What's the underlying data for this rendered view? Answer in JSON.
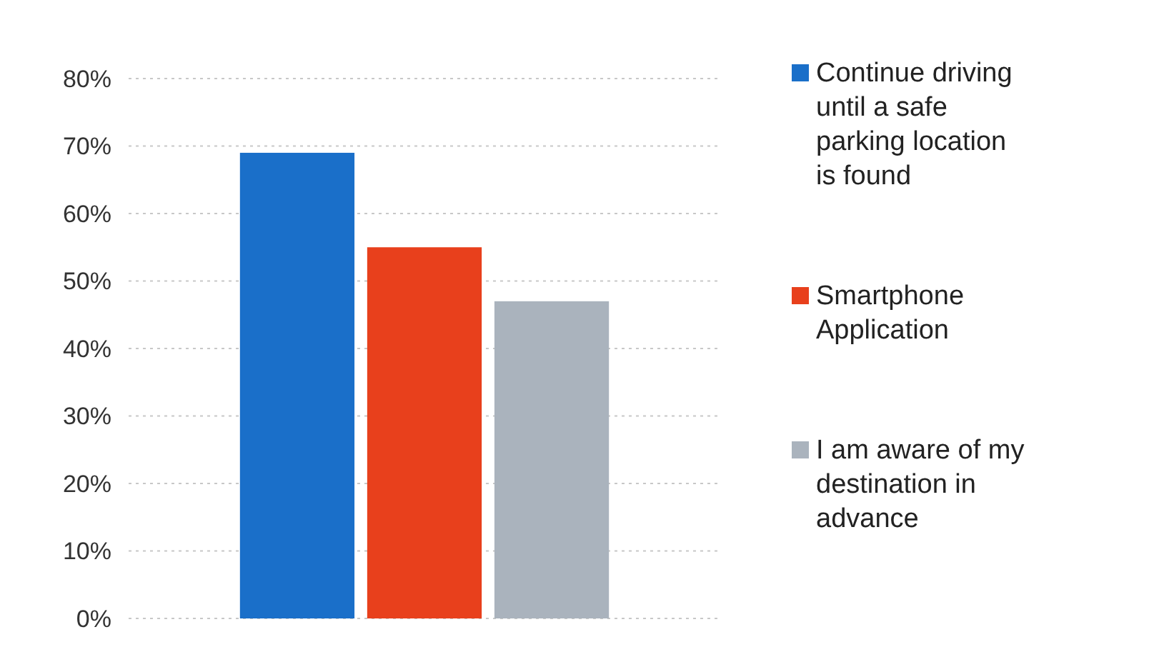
{
  "chart_data": {
    "type": "bar",
    "categories": [
      null
    ],
    "series": [
      {
        "name": "Continue driving until a safe parking location is found",
        "color": "#1a6fc9",
        "values": [
          69
        ]
      },
      {
        "name": "Smartphone Application",
        "color": "#e8401c",
        "values": [
          55
        ]
      },
      {
        "name": "I am aware of my destination in advance",
        "color": "#aab3bd",
        "values": [
          47
        ]
      }
    ],
    "ylim": [
      0,
      80
    ],
    "yticks": [
      {
        "value": 0,
        "label": "0%"
      },
      {
        "value": 10,
        "label": "10%"
      },
      {
        "value": 20,
        "label": "20%"
      },
      {
        "value": 30,
        "label": "30%"
      },
      {
        "value": 40,
        "label": "40%"
      },
      {
        "value": 50,
        "label": "50%"
      },
      {
        "value": 60,
        "label": "60%"
      },
      {
        "value": 70,
        "label": "70%"
      },
      {
        "value": 80,
        "label": "80%"
      }
    ],
    "grid": "y",
    "legend": "right"
  }
}
